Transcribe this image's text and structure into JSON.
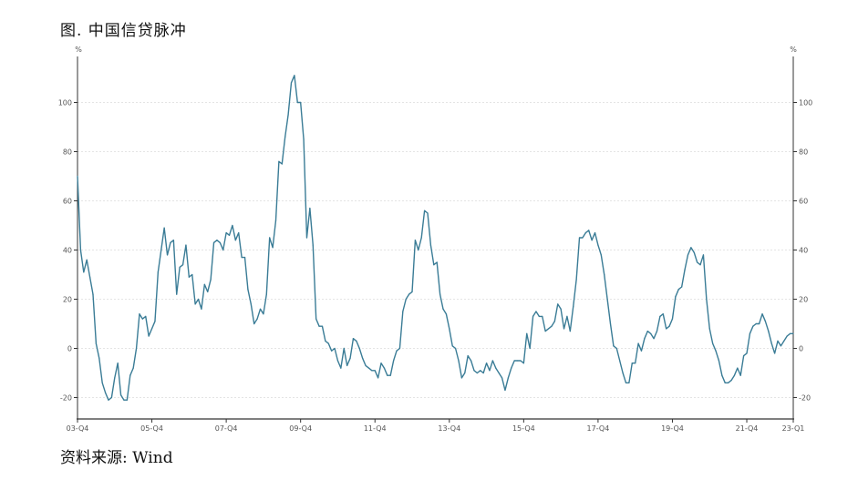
{
  "figure": {
    "title": "图. 中国信贷脉冲",
    "source": "资料来源: Wind"
  },
  "chart_data": {
    "type": "line",
    "title": "",
    "y_unit_left": "%",
    "y_unit_right": "%",
    "ylim": [
      -28,
      116
    ],
    "y_ticks": [
      100,
      80,
      60,
      40,
      20,
      0,
      -20
    ],
    "grid": true,
    "x_tick_labels": [
      "03-Q4",
      "05-Q4",
      "07-Q4",
      "09-Q4",
      "11-Q4",
      "13-Q4",
      "15-Q4",
      "17-Q4",
      "19-Q4",
      "21-Q4",
      "23-Q1"
    ],
    "x_tick_positions": [
      0,
      24,
      48,
      72,
      96,
      120,
      144,
      168,
      192,
      216,
      231
    ],
    "x_span": [
      0,
      231
    ],
    "colors": {
      "line": "#3a7c96",
      "axis": "#333333",
      "grid": "#e4e4e4"
    },
    "series": [
      {
        "points": [
          [
            0,
            70
          ],
          [
            1,
            40
          ],
          [
            2,
            31
          ],
          [
            3,
            36
          ],
          [
            4,
            29
          ],
          [
            5,
            22
          ],
          [
            6,
            2
          ],
          [
            7,
            -4
          ],
          [
            8,
            -14
          ],
          [
            9,
            -18
          ],
          [
            10,
            -21
          ],
          [
            11,
            -20
          ],
          [
            12,
            -12
          ],
          [
            13,
            -6
          ],
          [
            14,
            -19
          ],
          [
            15,
            -21
          ],
          [
            16,
            -21
          ],
          [
            17,
            -11
          ],
          [
            18,
            -8
          ],
          [
            19,
            0
          ],
          [
            20,
            14
          ],
          [
            21,
            12
          ],
          [
            22,
            13
          ],
          [
            23,
            5
          ],
          [
            24,
            8
          ],
          [
            25,
            11
          ],
          [
            26,
            31
          ],
          [
            27,
            40
          ],
          [
            28,
            49
          ],
          [
            29,
            38
          ],
          [
            30,
            43
          ],
          [
            31,
            44
          ],
          [
            32,
            22
          ],
          [
            33,
            33
          ],
          [
            34,
            34
          ],
          [
            35,
            42
          ],
          [
            36,
            29
          ],
          [
            37,
            30
          ],
          [
            38,
            18
          ],
          [
            39,
            20
          ],
          [
            40,
            16
          ],
          [
            41,
            26
          ],
          [
            42,
            23
          ],
          [
            43,
            28
          ],
          [
            44,
            43
          ],
          [
            45,
            44
          ],
          [
            46,
            43
          ],
          [
            47,
            40
          ],
          [
            48,
            47
          ],
          [
            49,
            46
          ],
          [
            50,
            50
          ],
          [
            51,
            44
          ],
          [
            52,
            47
          ],
          [
            53,
            37
          ],
          [
            54,
            37
          ],
          [
            55,
            24
          ],
          [
            56,
            18
          ],
          [
            57,
            10
          ],
          [
            58,
            12
          ],
          [
            59,
            16
          ],
          [
            60,
            14
          ],
          [
            61,
            22
          ],
          [
            62,
            45
          ],
          [
            63,
            41
          ],
          [
            64,
            52
          ],
          [
            65,
            76
          ],
          [
            66,
            75
          ],
          [
            67,
            86
          ],
          [
            68,
            95
          ],
          [
            69,
            108
          ],
          [
            70,
            111
          ],
          [
            71,
            100
          ],
          [
            72,
            100
          ],
          [
            73,
            85
          ],
          [
            74,
            45
          ],
          [
            75,
            57
          ],
          [
            76,
            42
          ],
          [
            77,
            12
          ],
          [
            78,
            9
          ],
          [
            79,
            9
          ],
          [
            80,
            3
          ],
          [
            81,
            2
          ],
          [
            82,
            -1
          ],
          [
            83,
            0
          ],
          [
            84,
            -5
          ],
          [
            85,
            -8
          ],
          [
            86,
            0
          ],
          [
            87,
            -7
          ],
          [
            88,
            -4
          ],
          [
            89,
            4
          ],
          [
            90,
            3
          ],
          [
            91,
            0
          ],
          [
            92,
            -4
          ],
          [
            93,
            -7
          ],
          [
            94,
            -8
          ],
          [
            95,
            -9
          ],
          [
            96,
            -9
          ],
          [
            97,
            -12
          ],
          [
            98,
            -6
          ],
          [
            99,
            -8
          ],
          [
            100,
            -11
          ],
          [
            101,
            -11
          ],
          [
            102,
            -5
          ],
          [
            103,
            -1
          ],
          [
            104,
            0
          ],
          [
            105,
            15
          ],
          [
            106,
            20
          ],
          [
            107,
            22
          ],
          [
            108,
            23
          ],
          [
            109,
            44
          ],
          [
            110,
            40
          ],
          [
            111,
            45
          ],
          [
            112,
            56
          ],
          [
            113,
            55
          ],
          [
            114,
            42
          ],
          [
            115,
            34
          ],
          [
            116,
            35
          ],
          [
            117,
            22
          ],
          [
            118,
            16
          ],
          [
            119,
            14
          ],
          [
            120,
            8
          ],
          [
            121,
            1
          ],
          [
            122,
            0
          ],
          [
            123,
            -5
          ],
          [
            124,
            -12
          ],
          [
            125,
            -10
          ],
          [
            126,
            -3
          ],
          [
            127,
            -5
          ],
          [
            128,
            -9
          ],
          [
            129,
            -10
          ],
          [
            130,
            -9
          ],
          [
            131,
            -10
          ],
          [
            132,
            -6
          ],
          [
            133,
            -9
          ],
          [
            134,
            -5
          ],
          [
            135,
            -8
          ],
          [
            136,
            -10
          ],
          [
            137,
            -12
          ],
          [
            138,
            -17
          ],
          [
            139,
            -12
          ],
          [
            140,
            -8
          ],
          [
            141,
            -5
          ],
          [
            142,
            -5
          ],
          [
            143,
            -5
          ],
          [
            144,
            -6
          ],
          [
            145,
            6
          ],
          [
            146,
            0
          ],
          [
            147,
            13
          ],
          [
            148,
            15
          ],
          [
            149,
            13
          ],
          [
            150,
            13
          ],
          [
            151,
            7
          ],
          [
            152,
            8
          ],
          [
            153,
            9
          ],
          [
            154,
            11
          ],
          [
            155,
            18
          ],
          [
            156,
            16
          ],
          [
            157,
            8
          ],
          [
            158,
            13
          ],
          [
            159,
            7
          ],
          [
            160,
            17
          ],
          [
            161,
            28
          ],
          [
            162,
            45
          ],
          [
            163,
            45
          ],
          [
            164,
            47
          ],
          [
            165,
            48
          ],
          [
            166,
            44
          ],
          [
            167,
            47
          ],
          [
            168,
            42
          ],
          [
            169,
            38
          ],
          [
            170,
            30
          ],
          [
            171,
            20
          ],
          [
            172,
            10
          ],
          [
            173,
            1
          ],
          [
            174,
            0
          ],
          [
            175,
            -5
          ],
          [
            176,
            -10
          ],
          [
            177,
            -14
          ],
          [
            178,
            -14
          ],
          [
            179,
            -6
          ],
          [
            180,
            -6
          ],
          [
            181,
            2
          ],
          [
            182,
            -1
          ],
          [
            183,
            4
          ],
          [
            184,
            7
          ],
          [
            185,
            6
          ],
          [
            186,
            4
          ],
          [
            187,
            7
          ],
          [
            188,
            13
          ],
          [
            189,
            14
          ],
          [
            190,
            8
          ],
          [
            191,
            9
          ],
          [
            192,
            12
          ],
          [
            193,
            21
          ],
          [
            194,
            24
          ],
          [
            195,
            25
          ],
          [
            196,
            32
          ],
          [
            197,
            38
          ],
          [
            198,
            41
          ],
          [
            199,
            39
          ],
          [
            200,
            35
          ],
          [
            201,
            34
          ],
          [
            202,
            38
          ],
          [
            203,
            20
          ],
          [
            204,
            8
          ],
          [
            205,
            2
          ],
          [
            206,
            -1
          ],
          [
            207,
            -5
          ],
          [
            208,
            -11
          ],
          [
            209,
            -14
          ],
          [
            210,
            -14
          ],
          [
            211,
            -13
          ],
          [
            212,
            -11
          ],
          [
            213,
            -8
          ],
          [
            214,
            -11
          ],
          [
            215,
            -3
          ],
          [
            216,
            -2
          ],
          [
            217,
            6
          ],
          [
            218,
            9
          ],
          [
            219,
            10
          ],
          [
            220,
            10
          ],
          [
            221,
            14
          ],
          [
            222,
            11
          ],
          [
            223,
            7
          ],
          [
            224,
            2
          ],
          [
            225,
            -2
          ],
          [
            226,
            3
          ],
          [
            227,
            1
          ],
          [
            228,
            3
          ],
          [
            229,
            5
          ],
          [
            230,
            6
          ],
          [
            231,
            6
          ]
        ]
      }
    ]
  }
}
